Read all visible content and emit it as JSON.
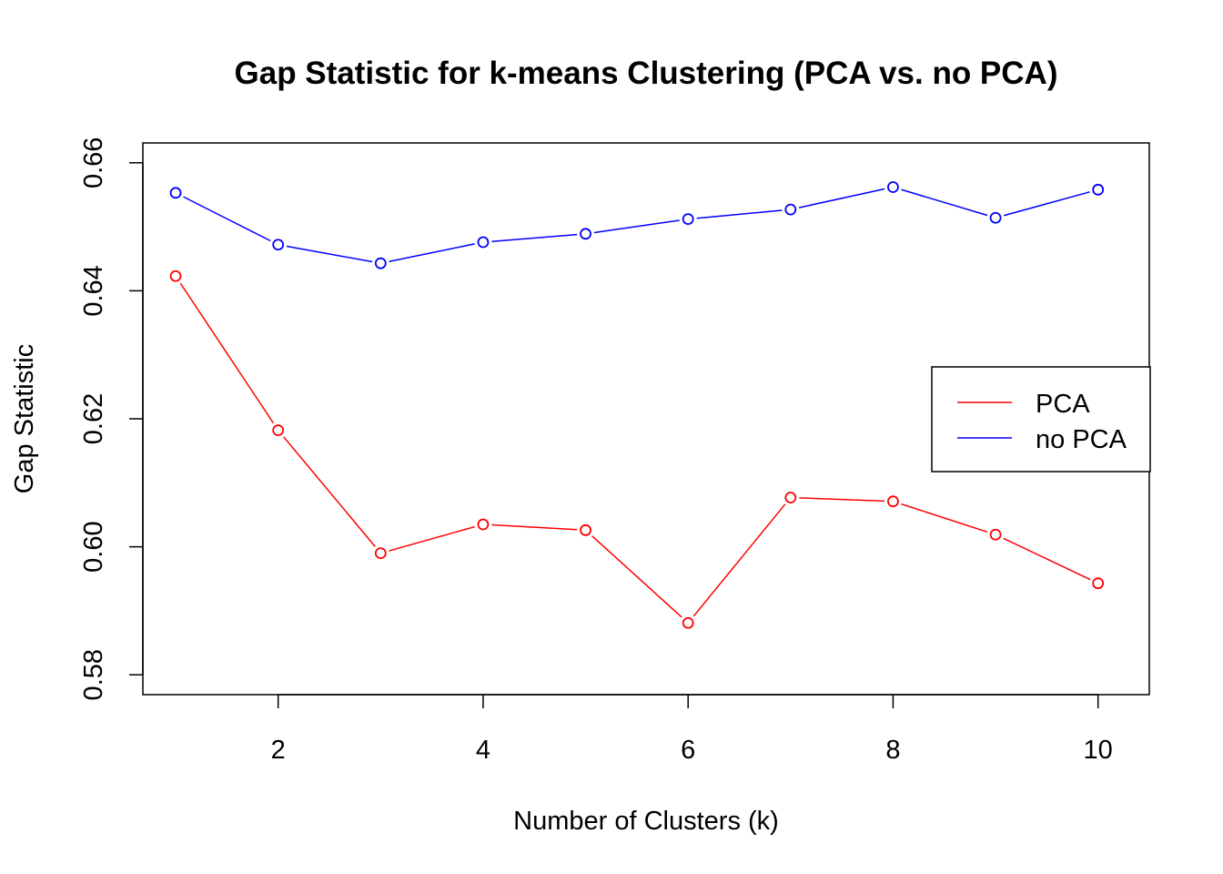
{
  "chart_data": {
    "type": "line",
    "title": "Gap Statistic for k-means Clustering (PCA vs. no PCA)",
    "xlabel": "Number of Clusters (k)",
    "ylabel": "Gap Statistic",
    "x": [
      1,
      2,
      3,
      4,
      5,
      6,
      7,
      8,
      9,
      10
    ],
    "xlim": [
      0.68,
      10.5
    ],
    "ylim": [
      0.5769,
      0.6631
    ],
    "x_ticks": [
      2,
      4,
      6,
      8,
      10
    ],
    "y_ticks": [
      0.58,
      0.6,
      0.62,
      0.64,
      0.66
    ],
    "x_tick_labels": [
      "2",
      "4",
      "6",
      "8",
      "10"
    ],
    "y_tick_labels": [
      "0.58",
      "0.60",
      "0.62",
      "0.64",
      "0.66"
    ],
    "grid": false,
    "legend_position": "right",
    "series": [
      {
        "name": "PCA",
        "color": "#ff0000",
        "marker": "open-circle",
        "values": [
          0.6423,
          0.6182,
          0.599,
          0.6035,
          0.6026,
          0.5881,
          0.6077,
          0.6071,
          0.6019,
          0.5943
        ]
      },
      {
        "name": "no PCA",
        "color": "#0000ff",
        "marker": "open-circle",
        "values": [
          0.6553,
          0.6472,
          0.6443,
          0.6476,
          0.6489,
          0.6512,
          0.6527,
          0.6562,
          0.6514,
          0.6558
        ]
      }
    ]
  }
}
